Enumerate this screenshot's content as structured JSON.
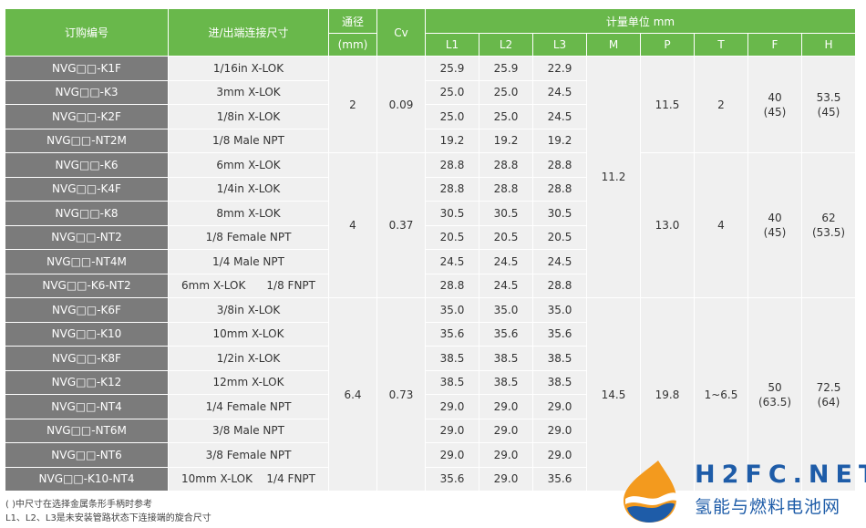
{
  "header": {
    "order_no": "订购编号",
    "connection": "进/出端连接尺寸",
    "bore": "通径",
    "bore_unit": "(mm)",
    "cv": "Cv",
    "measure": "计量单位 mm",
    "dims": [
      "L1",
      "L2",
      "L3",
      "M",
      "P",
      "T",
      "F",
      "H"
    ]
  },
  "rows": [
    {
      "code": "NVG□□-K1F",
      "conn": "1/16in X-LOK",
      "l1": "25.9",
      "l2": "25.9",
      "l3": "22.9"
    },
    {
      "code": "NVG□□-K3",
      "conn": "3mm X-LOK",
      "l1": "25.0",
      "l2": "25.0",
      "l3": "24.5"
    },
    {
      "code": "NVG□□-K2F",
      "conn": "1/8in X-LOK",
      "l1": "25.0",
      "l2": "25.0",
      "l3": "24.5"
    },
    {
      "code": "NVG□□-NT2M",
      "conn": "1/8 Male NPT",
      "l1": "19.2",
      "l2": "19.2",
      "l3": "19.2"
    },
    {
      "code": "NVG□□-K6",
      "conn": "6mm X-LOK",
      "l1": "28.8",
      "l2": "28.8",
      "l3": "28.8"
    },
    {
      "code": "NVG□□-K4F",
      "conn": "1/4in X-LOK",
      "l1": "28.8",
      "l2": "28.8",
      "l3": "28.8"
    },
    {
      "code": "NVG□□-K8",
      "conn": "8mm X-LOK",
      "l1": "30.5",
      "l2": "30.5",
      "l3": "30.5"
    },
    {
      "code": "NVG□□-NT2",
      "conn": "1/8 Female NPT",
      "l1": "20.5",
      "l2": "20.5",
      "l3": "20.5"
    },
    {
      "code": "NVG□□-NT4M",
      "conn": "1/4 Male NPT",
      "l1": "24.5",
      "l2": "24.5",
      "l3": "24.5"
    },
    {
      "code": "NVG□□-K6-NT2",
      "conn_a": "6mm X-LOK",
      "conn_b": "1/8 FNPT",
      "l1": "28.8",
      "l2": "24.5",
      "l3": "28.8"
    },
    {
      "code": "NVG□□-K6F",
      "conn": "3/8in X-LOK",
      "l1": "35.0",
      "l2": "35.0",
      "l3": "35.0"
    },
    {
      "code": "NVG□□-K10",
      "conn": "10mm X-LOK",
      "l1": "35.6",
      "l2": "35.6",
      "l3": "35.6"
    },
    {
      "code": "NVG□□-K8F",
      "conn": "1/2in X-LOK",
      "l1": "38.5",
      "l2": "38.5",
      "l3": "38.5"
    },
    {
      "code": "NVG□□-K12",
      "conn": "12mm X-LOK",
      "l1": "38.5",
      "l2": "38.5",
      "l3": "38.5"
    },
    {
      "code": "NVG□□-NT4",
      "conn": "1/4 Female NPT",
      "l1": "29.0",
      "l2": "29.0",
      "l3": "29.0"
    },
    {
      "code": "NVG□□-NT6M",
      "conn": "3/8 Male NPT",
      "l1": "29.0",
      "l2": "29.0",
      "l3": "29.0"
    },
    {
      "code": "NVG□□-NT6",
      "conn": "3/8 Female NPT",
      "l1": "29.0",
      "l2": "29.0",
      "l3": "29.0"
    },
    {
      "code": "NVG□□-K10-NT4",
      "conn_a": "10mm X-LOK",
      "conn_b": "1/4 FNPT",
      "l1": "35.6",
      "l2": "29.0",
      "l3": "35.6"
    }
  ],
  "groups": [
    {
      "bore": "2",
      "cv": "0.09"
    },
    {
      "bore": "4",
      "cv": "0.37"
    },
    {
      "bore": "6.4",
      "cv": "0.73"
    }
  ],
  "m_values": [
    "11.2",
    "14.5"
  ],
  "p_values": [
    "11.5",
    "13.0",
    "19.8"
  ],
  "t_values": [
    "2",
    "4",
    "1~6.5"
  ],
  "f_values": [
    {
      "main": "40",
      "alt": "(45)"
    },
    {
      "main": "40",
      "alt": "(45)"
    },
    {
      "main": "50",
      "alt": "(63.5)"
    }
  ],
  "h_values": [
    {
      "main": "53.5",
      "alt": "(45)"
    },
    {
      "main": "62",
      "alt": "(53.5)"
    },
    {
      "main": "72.5",
      "alt": "(64)"
    }
  ],
  "notes": [
    "( )中尺寸在选择金属条形手柄时参考",
    "L1、L2、L3是未安装管路状态下连接端的旋合尺寸"
  ],
  "watermark": {
    "brand": "H2FC.NET",
    "subtitle": "氢能与燃料电池网"
  },
  "colors": {
    "header_green": "#69b84b",
    "code_gray": "#7b7b7b",
    "cell_bg": "#f0f0f0",
    "logo_blue": "#1e5ca8",
    "logo_orange": "#f39a1e"
  }
}
